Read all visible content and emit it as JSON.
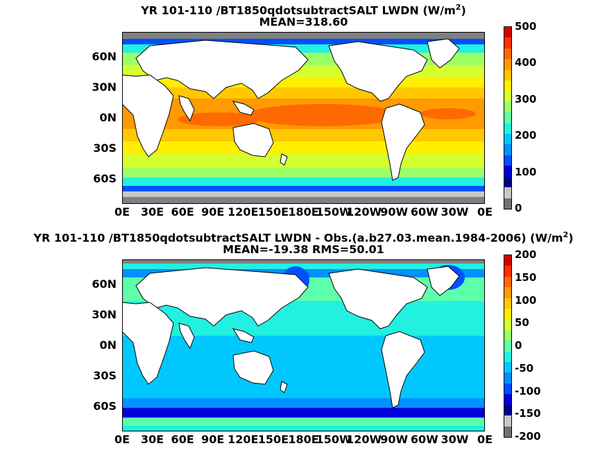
{
  "chart_data": [
    {
      "type": "heatmap",
      "title_prefix": "YR 101-110 /BT1850qdotsubtractSALT LWDN (W/m",
      "title_sup": "2",
      "title_suffix": ")",
      "subtitle": "MEAN=318.60",
      "x_ticks": [
        "0E",
        "30E",
        "60E",
        "90E",
        "120E",
        "150E",
        "180E",
        "150W",
        "120W",
        "90W",
        "60W",
        "30W",
        "0E"
      ],
      "y_ticks": [
        "60N",
        "30N",
        "0N",
        "30S",
        "60S"
      ],
      "colorbar_ticks": [
        "500",
        "400",
        "300",
        "200",
        "100",
        "0"
      ],
      "colorbar_range": [
        0,
        500
      ],
      "colorbar_colors": [
        "#d40000",
        "#ff3000",
        "#ff6a00",
        "#ff9a00",
        "#ffc800",
        "#ffee00",
        "#d6ff30",
        "#9cff66",
        "#5cffaa",
        "#22f0e0",
        "#00c8ff",
        "#0090ff",
        "#0050ff",
        "#0000d8",
        "#00008a",
        "#c8c8c8",
        "#707070"
      ],
      "land_color": "#ffffff",
      "missing_color": "#808080"
    },
    {
      "type": "heatmap",
      "title_prefix": "YR 101-110 /BT1850qdotsubtractSALT LWDN - Obs.(a.b27.03.mean.1984-2006) (W/m",
      "title_sup": "2",
      "title_suffix": ")",
      "subtitle": "MEAN=-19.38 RMS=50.01",
      "x_ticks": [
        "0E",
        "30E",
        "60E",
        "90E",
        "120E",
        "150E",
        "180E",
        "150W",
        "120W",
        "90W",
        "60W",
        "30W",
        "0E"
      ],
      "y_ticks": [
        "60N",
        "30N",
        "0N",
        "30S",
        "60S"
      ],
      "colorbar_ticks": [
        "200",
        "150",
        "100",
        "50",
        "0",
        "-50",
        "-100",
        "-150",
        "-200"
      ],
      "colorbar_range": [
        -200,
        200
      ],
      "colorbar_colors": [
        "#d40000",
        "#ff3000",
        "#ff6a00",
        "#ff9a00",
        "#ffc800",
        "#ffee00",
        "#d6ff30",
        "#9cff66",
        "#5cffaa",
        "#22f0e0",
        "#00c8ff",
        "#0090ff",
        "#0050ff",
        "#0000d8",
        "#00008a",
        "#c8c8c8",
        "#707070"
      ],
      "land_color": "#ffffff",
      "missing_color": "#808080"
    }
  ]
}
